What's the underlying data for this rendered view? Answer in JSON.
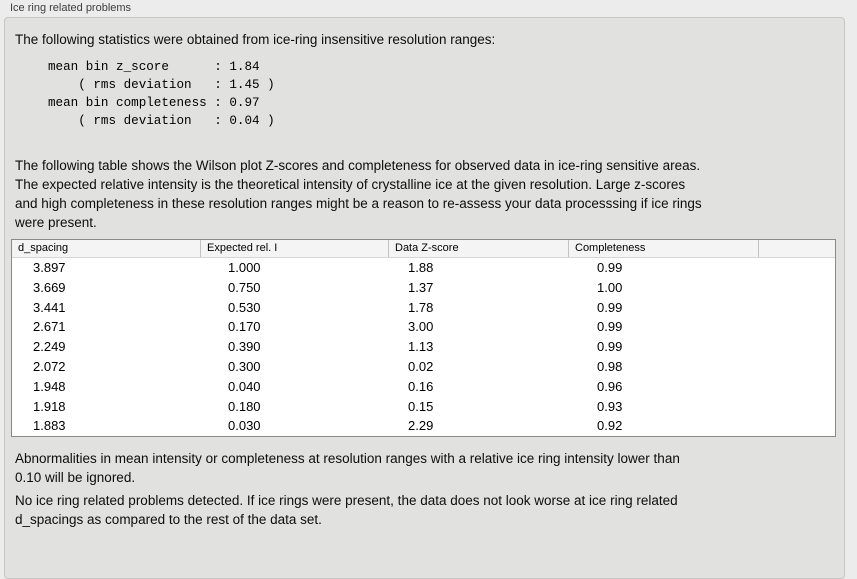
{
  "groupbox": {
    "title": "Ice ring related problems"
  },
  "intro_text": "The following statistics were obtained from ice-ring insensitive resolution ranges:",
  "stats_block": "mean bin z_score      : 1.84\n    ( rms deviation   : 1.45 )\nmean bin completeness : 0.97\n    ( rms deviation   : 0.04 )",
  "stats": {
    "mean_bin_z_score": "1.84",
    "z_score_rms_deviation": "1.45",
    "mean_bin_completeness": "0.97",
    "completeness_rms_deviation": "0.04"
  },
  "table_description": "The following table shows the Wilson plot Z-scores and completeness for observed data in ice-ring sensitive areas.\nThe expected relative intensity is the theoretical intensity of crystalline ice at the given resolution. Large z-scores\nand high completeness in these resolution ranges might be a reason to re-assess your data processsing if ice rings\nwere present.",
  "table": {
    "columns": [
      "d_spacing",
      "Expected rel. I",
      "Data Z-score",
      "Completeness"
    ],
    "rows": [
      [
        "3.897",
        "1.000",
        "1.88",
        "0.99"
      ],
      [
        "3.669",
        "0.750",
        "1.37",
        "1.00"
      ],
      [
        "3.441",
        "0.530",
        "1.78",
        "0.99"
      ],
      [
        "2.671",
        "0.170",
        "3.00",
        "0.99"
      ],
      [
        "2.249",
        "0.390",
        "1.13",
        "0.99"
      ],
      [
        "2.072",
        "0.300",
        "0.02",
        "0.98"
      ],
      [
        "1.948",
        "0.040",
        "0.16",
        "0.96"
      ],
      [
        "1.918",
        "0.180",
        "0.15",
        "0.93"
      ],
      [
        "1.883",
        "0.030",
        "2.29",
        "0.92"
      ]
    ]
  },
  "ignore_note": "Abnormalities in mean intensity or completeness at resolution ranges with a relative ice ring intensity lower than\n0.10 will be ignored.",
  "conclusion_note": "No ice ring related problems detected. If ice rings were present, the data does not look worse at ice ring related\nd_spacings as compared to the rest of the data set.",
  "colors": {
    "window_bg": "#ececec",
    "groupbox_bg": "#e1e1df",
    "table_border": "#8a8a8a",
    "table_header_bg": "#f4f4f4"
  }
}
